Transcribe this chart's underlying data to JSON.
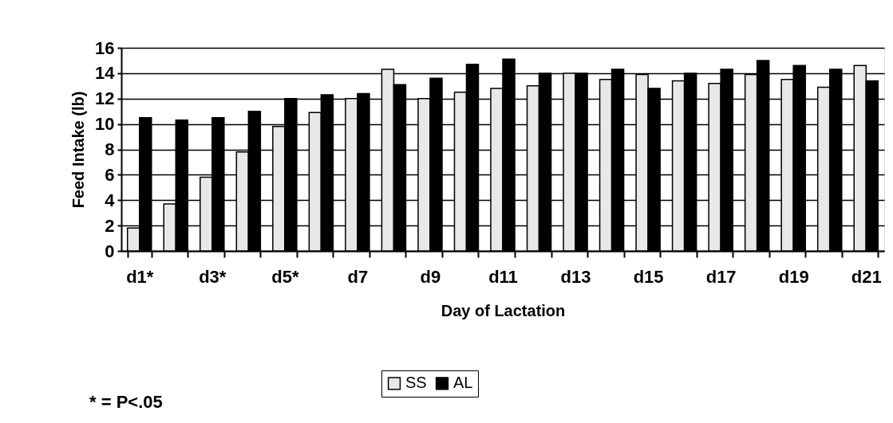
{
  "chart_data": {
    "type": "bar",
    "xlabel": "Day of Lactation",
    "ylabel": "Feed Intake (lb)",
    "categories": [
      "d1*",
      null,
      "d3*",
      null,
      "d5*",
      null,
      "d7",
      null,
      "d9",
      null,
      "d11",
      null,
      "d13",
      null,
      "d15",
      null,
      "d17",
      null,
      "d19",
      null,
      "d21"
    ],
    "series": [
      {
        "name": "SS",
        "color": "#e8e8e8",
        "values": [
          1.8,
          3.7,
          5.8,
          7.8,
          9.8,
          10.9,
          12.0,
          14.3,
          12.0,
          12.5,
          12.8,
          13.0,
          14.0,
          13.5,
          13.9,
          13.4,
          13.2,
          13.9,
          13.5,
          12.9,
          14.6
        ]
      },
      {
        "name": "AL",
        "color": "#000000",
        "values": [
          10.5,
          10.3,
          10.5,
          11.0,
          12.0,
          12.3,
          12.4,
          13.1,
          13.6,
          14.7,
          15.1,
          14.0,
          14.0,
          14.3,
          12.8,
          14.0,
          14.3,
          15.0,
          14.6,
          14.3,
          13.4
        ]
      }
    ],
    "ylim": [
      0,
      16
    ],
    "yticks": [
      0,
      2,
      4,
      6,
      8,
      10,
      12,
      14,
      16
    ],
    "grid": "y",
    "legend": "bottom",
    "annotations": [
      "* = P<.05"
    ]
  }
}
